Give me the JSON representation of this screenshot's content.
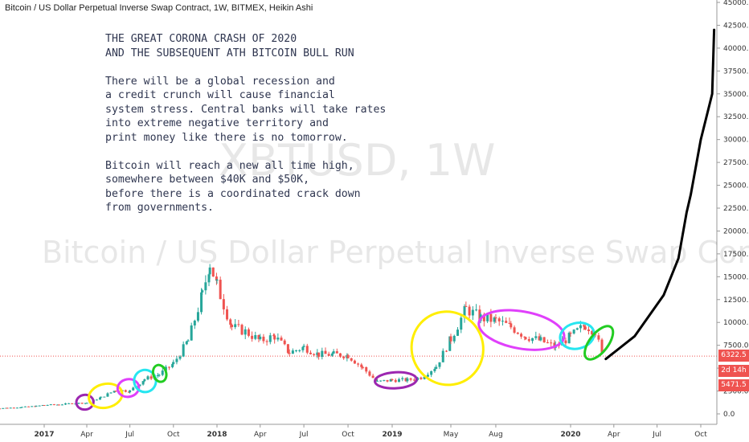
{
  "header": {
    "title": "Bitcoin / US Dollar Perpetual Inverse Swap Contract, 1W, BITMEX, Heikin Ashi"
  },
  "watermark": {
    "symbol": "XBTUSD, 1W",
    "description": "Bitcoin / US Dollar Perpetual Inverse Swap Contract"
  },
  "annotation_lines": [
    "THE GREAT CORONA CRASH OF 2020",
    "AND THE SUBSEQUENT ATH BITCOIN BULL RUN",
    "",
    "There will be a global recession and",
    "a credit crunch will cause financial",
    "system stress. Central banks will take rates",
    "into extreme negative territory and",
    "print money like there is no tomorrow.",
    "",
    "Bitcoin will reach a new all time high,",
    "somewhere between $40K and $50K,",
    "before there is a coordinated crack down",
    "from governments."
  ],
  "price_badges": {
    "last_price": "6322.5",
    "countdown": "2d 14h",
    "low_price": "5471.5"
  },
  "colors": {
    "up": "#26a69a",
    "down": "#ef5350",
    "last_price_badge": "#ef5350",
    "low_price_badge": "#ef5350",
    "countdown_badge": "#ef5350",
    "projection": "#000000",
    "circle_purple": "#9c27b0",
    "circle_yellow": "#ffee00",
    "circle_pink": "#e040fb",
    "circle_cyan": "#26e6f0",
    "circle_green": "#22cc22"
  },
  "chart_data": {
    "type": "candlestick",
    "style": "Heikin Ashi",
    "timeframe": "1W",
    "exchange": "BITMEX",
    "y_axis": {
      "position": "right",
      "range": [
        -1000,
        45000
      ],
      "ticks": [
        "0.0",
        "2500.0",
        "5000.0",
        "7500.0",
        "10000.0",
        "12500.0",
        "15000.0",
        "17500.0",
        "20000.0",
        "22500.0",
        "25000.0",
        "27500.0",
        "30000.0",
        "32500.0",
        "35000.0",
        "37500.0",
        "40000.0",
        "42500.0",
        "45000.0"
      ]
    },
    "x_axis": {
      "ticks": [
        "2017",
        "Apr",
        "Jul",
        "Oct",
        "2018",
        "Apr",
        "Jul",
        "Oct",
        "2019",
        "May",
        "Aug",
        "2020",
        "Apr",
        "Jul",
        "Oct"
      ]
    },
    "last_price": 6322.5,
    "series": [
      {
        "kind": "ohlc_weekly",
        "points": [
          [
            "2016-09-15",
            600
          ],
          [
            "2016-10-15",
            650
          ],
          [
            "2016-11-15",
            740
          ],
          [
            "2016-12-15",
            850
          ],
          [
            "2017-01-01",
            970
          ],
          [
            "2017-02-01",
            1020
          ],
          [
            "2017-03-01",
            1150
          ],
          [
            "2017-04-01",
            1200
          ],
          [
            "2017-05-01",
            1800
          ],
          [
            "2017-06-01",
            2600
          ],
          [
            "2017-07-01",
            2500
          ],
          [
            "2017-08-01",
            3800
          ],
          [
            "2017-09-01",
            4300
          ],
          [
            "2017-10-01",
            5500
          ],
          [
            "2017-11-01",
            8000
          ],
          [
            "2017-12-01",
            13000
          ],
          [
            "2017-12-17",
            16500
          ],
          [
            "2018-01-01",
            14000
          ],
          [
            "2018-02-01",
            9500
          ],
          [
            "2018-03-01",
            9000
          ],
          [
            "2018-04-01",
            8000
          ],
          [
            "2018-05-01",
            8500
          ],
          [
            "2018-06-01",
            6700
          ],
          [
            "2018-07-01",
            7300
          ],
          [
            "2018-08-01",
            6500
          ],
          [
            "2018-09-01",
            6500
          ],
          [
            "2018-10-01",
            6400
          ],
          [
            "2018-11-01",
            5000
          ],
          [
            "2018-12-01",
            3500
          ],
          [
            "2019-01-01",
            3700
          ],
          [
            "2019-02-01",
            3700
          ],
          [
            "2019-03-01",
            4000
          ],
          [
            "2019-04-01",
            5200
          ],
          [
            "2019-05-01",
            8200
          ],
          [
            "2019-06-01",
            11500
          ],
          [
            "2019-07-01",
            10500
          ],
          [
            "2019-08-01",
            10200
          ],
          [
            "2019-09-01",
            9500
          ],
          [
            "2019-10-01",
            8500
          ],
          [
            "2019-11-01",
            8000
          ],
          [
            "2019-12-01",
            7300
          ],
          [
            "2020-01-01",
            8500
          ],
          [
            "2020-02-01",
            9700
          ],
          [
            "2020-02-22",
            9000
          ],
          [
            "2020-03-08",
            6322.5
          ]
        ]
      },
      {
        "name": "",
        "kind": "projection",
        "points": [
          [
            "2020-03-15",
            6000
          ],
          [
            "2020-05-15",
            8500
          ],
          [
            "2020-07-15",
            13000
          ],
          [
            "2020-08-15",
            17000
          ],
          [
            "2020-09-01",
            22000
          ],
          [
            "2020-09-10",
            24000
          ],
          [
            "2020-10-01",
            30000
          ],
          [
            "2020-10-25",
            35000
          ],
          [
            "2020-10-29",
            42000
          ]
        ]
      }
    ],
    "highlights": [
      {
        "color": "purple",
        "from": "2017-03-15",
        "to": "2017-04-10"
      },
      {
        "color": "yellow",
        "from": "2017-04-10",
        "to": "2017-06-10"
      },
      {
        "color": "pink",
        "from": "2017-06-10",
        "to": "2017-07-15"
      },
      {
        "color": "cyan",
        "from": "2017-07-15",
        "to": "2017-08-20"
      },
      {
        "color": "green",
        "from": "2017-08-25",
        "to": "2017-09-10"
      },
      {
        "color": "purple",
        "from": "2018-12-01",
        "to": "2019-02-15"
      },
      {
        "color": "yellow",
        "from": "2019-02-15",
        "to": "2019-07-01"
      },
      {
        "color": "pink",
        "from": "2019-07-01",
        "to": "2019-12-15"
      },
      {
        "color": "cyan",
        "from": "2019-12-15",
        "to": "2020-02-15"
      },
      {
        "color": "green",
        "from": "2020-02-15",
        "to": "2020-03-15"
      }
    ]
  }
}
